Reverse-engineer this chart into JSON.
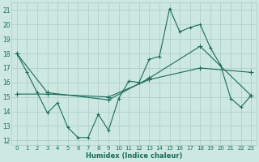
{
  "xlabel": "Humidex (Indice chaleur)",
  "bg_color": "#cce8e0",
  "line_color": "#1a6b5a",
  "grid_color": "#a8ccc4",
  "x_ticks": [
    0,
    1,
    2,
    3,
    4,
    5,
    6,
    7,
    8,
    9,
    10,
    11,
    12,
    13,
    14,
    15,
    16,
    17,
    18,
    19,
    20,
    21,
    22,
    23
  ],
  "y_ticks": [
    12,
    13,
    14,
    15,
    16,
    17,
    18,
    19,
    20,
    21
  ],
  "x_min": -0.5,
  "x_max": 23.5,
  "y_min": 11.7,
  "y_max": 21.5,
  "series1_x": [
    0,
    1,
    2,
    3,
    4,
    5,
    6,
    7,
    8,
    9,
    10,
    11,
    12,
    13,
    14,
    15,
    16,
    17,
    18,
    19,
    20,
    21,
    22,
    23
  ],
  "series1_y": [
    18.0,
    16.7,
    15.3,
    13.9,
    14.6,
    12.9,
    12.2,
    12.2,
    13.8,
    12.7,
    14.9,
    16.1,
    16.0,
    17.6,
    17.8,
    21.1,
    19.5,
    19.8,
    20.0,
    18.4,
    17.2,
    14.9,
    14.3,
    15.1
  ],
  "series2_x": [
    0,
    3,
    9,
    13,
    18,
    23
  ],
  "series2_y": [
    18.0,
    15.3,
    14.8,
    16.3,
    18.5,
    15.1
  ],
  "series3_x": [
    0,
    3,
    9,
    13,
    18,
    23
  ],
  "series3_y": [
    15.2,
    15.2,
    15.0,
    16.2,
    17.0,
    16.7
  ]
}
